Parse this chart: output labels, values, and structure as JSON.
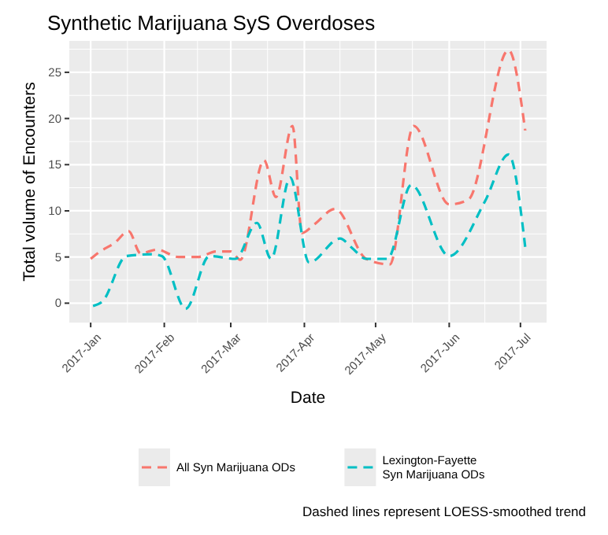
{
  "chart_data": {
    "type": "line",
    "title": "Synthetic Marijuana SyS Overdoses",
    "xlabel": "Date",
    "ylabel": "Total volume of Encounters",
    "annotations": [
      "Dashed lines represent LOESS-smoothed trend"
    ],
    "series": [
      {
        "name": "All Syn Marijuana ODs",
        "color": "#f8766d",
        "x": [
          "2017-01-01",
          "2017-01-05",
          "2017-01-11",
          "2017-01-17",
          "2017-01-22",
          "2017-01-29",
          "2017-02-07",
          "2017-02-15",
          "2017-02-23",
          "2017-03-01",
          "2017-03-05",
          "2017-03-15",
          "2017-03-20",
          "2017-03-27",
          "2017-03-31",
          "2017-04-05",
          "2017-04-14",
          "2017-04-27",
          "2017-05-07",
          "2017-05-17",
          "2017-06-01",
          "2017-06-09",
          "2017-06-26",
          "2017-07-03"
        ],
        "values": [
          4.8,
          5.6,
          6.5,
          7.8,
          5.4,
          5.8,
          5.0,
          5.0,
          5.6,
          5.6,
          4.7,
          15.5,
          11.5,
          19.2,
          7.6,
          8.5,
          10.2,
          4.8,
          4.2,
          19.2,
          10.7,
          11.2,
          27.4,
          18.7
        ]
      },
      {
        "name": "Lexington-Fayette Syn Marijuana ODs",
        "color": "#00bfc4",
        "x": [
          "2017-01-02",
          "2017-01-06",
          "2017-01-16",
          "2017-01-27",
          "2017-01-31",
          "2017-02-10",
          "2017-02-20",
          "2017-03-03",
          "2017-03-12",
          "2017-03-18",
          "2017-03-26",
          "2017-04-03",
          "2017-04-16",
          "2017-04-21",
          "2017-04-27",
          "2017-05-06",
          "2017-05-16",
          "2017-06-01",
          "2017-06-16",
          "2017-06-26",
          "2017-07-03"
        ],
        "values": [
          -0.3,
          0.2,
          5.1,
          5.3,
          5.1,
          -0.6,
          5.1,
          4.8,
          8.7,
          4.8,
          13.6,
          4.4,
          7.0,
          6.0,
          4.8,
          4.8,
          12.8,
          5.1,
          11.0,
          16.1,
          6.1
        ]
      }
    ],
    "xlim": [
      "2016-12-23",
      "2017-07-12"
    ],
    "xticks": [
      {
        "value": "2017-01-01",
        "label": "2017-Jan"
      },
      {
        "value": "2017-02-01",
        "label": "2017-Feb"
      },
      {
        "value": "2017-03-01",
        "label": "2017-Mar"
      },
      {
        "value": "2017-04-01",
        "label": "2017-Apr"
      },
      {
        "value": "2017-05-01",
        "label": "2017-May"
      },
      {
        "value": "2017-06-01",
        "label": "2017-Jun"
      },
      {
        "value": "2017-07-01",
        "label": "2017-Jul"
      }
    ],
    "ylim": [
      -2.1,
      28.4
    ],
    "yticks": [
      0,
      5,
      10,
      15,
      20,
      25
    ],
    "grid": true,
    "legend": "bottom",
    "line_style": "dashed",
    "marker": "none"
  }
}
